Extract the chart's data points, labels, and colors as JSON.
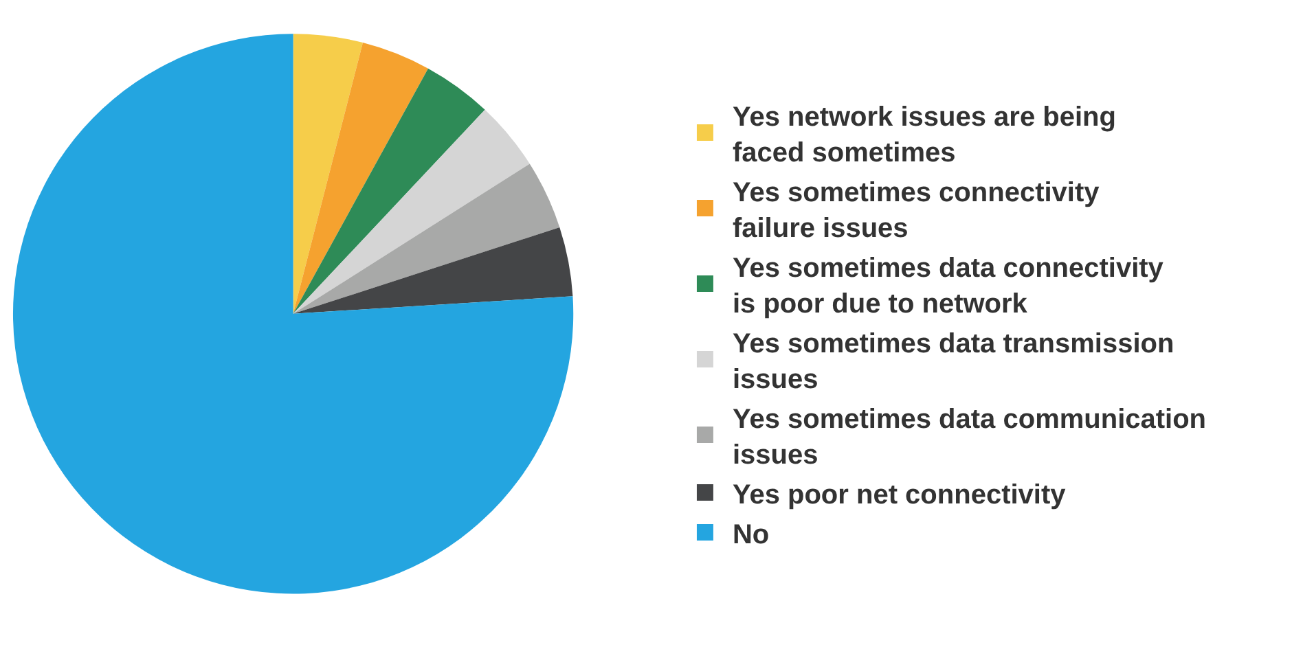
{
  "chart_data": {
    "type": "pie",
    "categories": [
      "Yes network issues are being faced sometimes",
      "Yes sometimes connectivity failure issues",
      "Yes sometimes data connectivity is poor due to network",
      "Yes sometimes data transmission issues",
      "Yes sometimes data communication issues",
      "Yes poor net connectivity",
      "No"
    ],
    "values": [
      4,
      4,
      4,
      4,
      4,
      4,
      76
    ],
    "colors": [
      "#f6cd4a",
      "#f5a22f",
      "#2e8b57",
      "#d5d5d5",
      "#a8a9a8",
      "#444547",
      "#24a5e0"
    ],
    "legend": "right"
  }
}
